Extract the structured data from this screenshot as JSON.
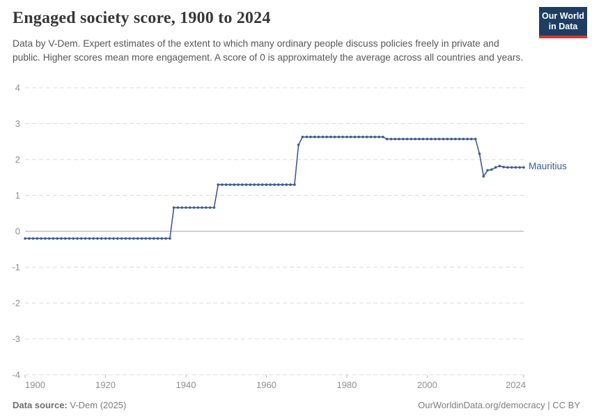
{
  "header": {
    "title": "Engaged society score, 1900 to 2024",
    "subtitle": "Data by V-Dem. Expert estimates of the extent to which many ordinary people discuss policies freely in private and public. Higher scores mean more engagement. A score of 0 is approximately the average across all countries and years.",
    "logo": {
      "line1": "Our World",
      "line2": "in Data",
      "bg_color": "#1d3d63",
      "stripe_color": "#dc362a"
    }
  },
  "chart_data": {
    "type": "line",
    "title": "Engaged society score, 1900 to 2024",
    "xlabel": "",
    "ylabel": "",
    "x_axis": {
      "min": 1900,
      "max": 2024,
      "ticks": [
        1900,
        1920,
        1940,
        1960,
        1980,
        2000,
        2024
      ]
    },
    "y_axis": {
      "min": -4,
      "max": 4,
      "ticks": [
        4,
        3,
        2,
        1,
        0,
        -1,
        -2,
        -3,
        -4
      ],
      "zero_line_solid": true
    },
    "grid": "dashed horizontal gridlines, solid zero line",
    "legend_position": "right end of line",
    "series": [
      {
        "name": "Mauritius",
        "color": "#3d5a96",
        "marker": "dot-every-year",
        "segments": [
          {
            "start": 1900,
            "end": 1936,
            "value": -0.2
          },
          {
            "start": 1937,
            "end": 1947,
            "value": 0.66
          },
          {
            "start": 1948,
            "end": 1967,
            "value": 1.3
          },
          {
            "start": 1968,
            "end": 1968,
            "value": 2.41
          },
          {
            "start": 1969,
            "end": 1989,
            "value": 2.63
          },
          {
            "start": 1990,
            "end": 2012,
            "value": 2.57
          },
          {
            "start": 2013,
            "end": 2013,
            "value": 2.16
          },
          {
            "start": 2014,
            "end": 2014,
            "value": 1.53
          },
          {
            "start": 2015,
            "end": 2015,
            "value": 1.7
          },
          {
            "start": 2016,
            "end": 2016,
            "value": 1.72
          },
          {
            "start": 2017,
            "end": 2017,
            "value": 1.78
          },
          {
            "start": 2018,
            "end": 2018,
            "value": 1.82
          },
          {
            "start": 2019,
            "end": 2019,
            "value": 1.79
          },
          {
            "start": 2020,
            "end": 2024,
            "value": 1.78
          }
        ]
      }
    ]
  },
  "footer": {
    "source_label": "Data source:",
    "source_value": "V-Dem (2025)",
    "credit": "OurWorldinData.org/democracy | CC BY"
  },
  "colors": {
    "line": "#3d5a96",
    "grid": "#dcdcdc",
    "zero_line": "#a3a3a3",
    "axis_tick": "#bcbcbc",
    "axis_text": "#8f8f8f",
    "title_text": "#373737",
    "subtitle_text": "#565656",
    "footer_text": "#7d7d7d"
  }
}
